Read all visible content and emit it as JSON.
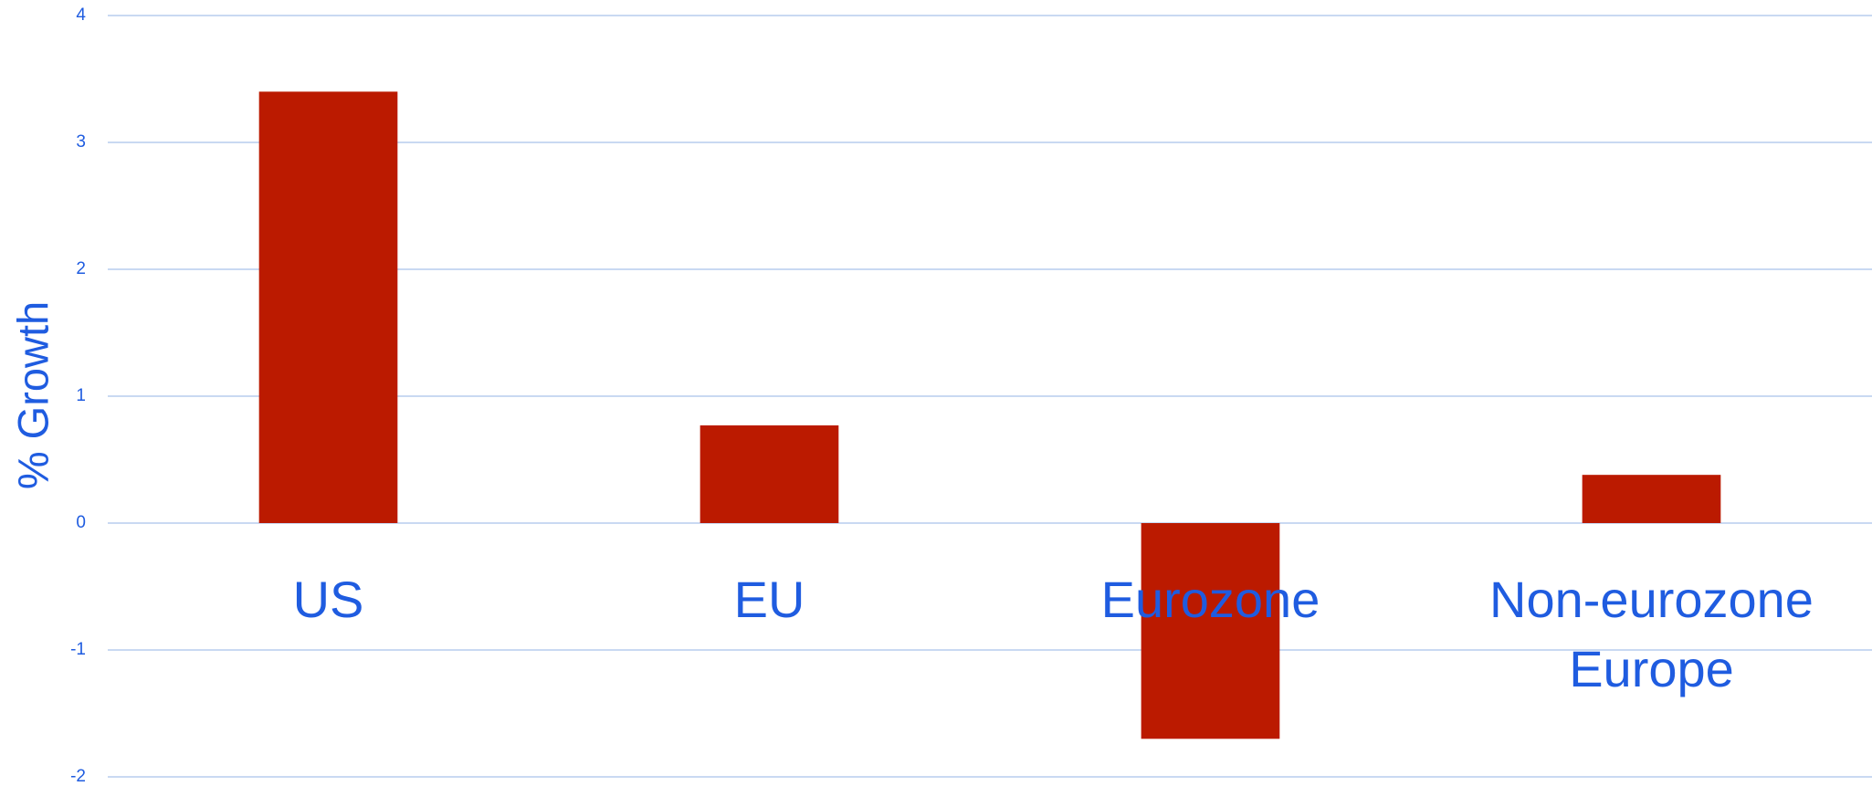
{
  "chart_data": {
    "type": "bar",
    "y_label": "% Growth",
    "categories": [
      "US",
      "EU",
      "Eurozone",
      "Non-eurozone Europe"
    ],
    "values": [
      3.4,
      0.77,
      -1.7,
      0.38
    ],
    "color": "#bb1a00",
    "ylim": [
      -2,
      4
    ],
    "yticks": [
      -2,
      -1,
      0,
      1,
      2,
      3,
      4
    ],
    "grid": true
  }
}
